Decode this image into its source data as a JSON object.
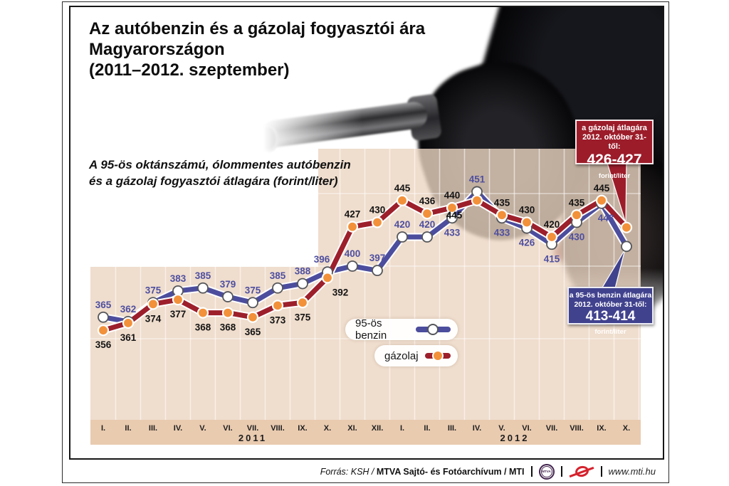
{
  "header": {
    "title_lines": [
      "Az autóbenzin és a gázolaj fogyasztói ára",
      "Magyarországon",
      "(2011–2012. szeptember)"
    ],
    "subtitle_lines": [
      "A 95-ös oktánszámú, ólommentes autóbenzin",
      "és a gázolaj fogyasztói átlagára (forint/liter)"
    ]
  },
  "chart_data": {
    "type": "line",
    "title": "Az autóbenzin és a gázolaj fogyasztói ára Magyarországon (2011–2012. szeptember)",
    "ylabel": "forint/liter",
    "ylim": [
      340,
      465
    ],
    "grid": true,
    "x_groups": [
      {
        "year": "2011",
        "months": [
          "I.",
          "II.",
          "III.",
          "IV.",
          "V.",
          "VI.",
          "VII.",
          "VIII.",
          "IX.",
          "X.",
          "XI.",
          "XII."
        ]
      },
      {
        "year": "2012",
        "months": [
          "I.",
          "II.",
          "III.",
          "IV.",
          "V.",
          "VI.",
          "VII.",
          "VIII.",
          "IX.",
          "X."
        ]
      }
    ],
    "series": [
      {
        "name": "95-ös benzin",
        "line_color": "#4c4d9d",
        "dot_fill": "#ffffff",
        "dot_stroke": "#55565a",
        "label_color": "#4e4fa0",
        "values": [
          365,
          362,
          375,
          383,
          385,
          379,
          375,
          385,
          388,
          396,
          400,
          397,
          420,
          420,
          433,
          451,
          433,
          426,
          415,
          430,
          443,
          413.5
        ],
        "labels": [
          "365",
          "362",
          "375",
          "383",
          "385",
          "379",
          "375",
          "385",
          "388",
          "396",
          "400",
          "397",
          "420",
          "420",
          "433",
          "451",
          "433",
          "426",
          "415",
          "430",
          "443",
          ""
        ],
        "label_side": [
          "above",
          "above",
          "above",
          "above",
          "above",
          "above",
          "above",
          "above",
          "above",
          "above",
          "above",
          "above",
          "above",
          "above",
          "below",
          "above",
          "below",
          "below",
          "below",
          "below",
          "below",
          "none"
        ],
        "label_dx": [
          0,
          0,
          0,
          0,
          0,
          0,
          0,
          0,
          0,
          -8,
          0,
          0,
          0,
          0,
          0,
          0,
          0,
          0,
          0,
          0,
          6,
          0
        ]
      },
      {
        "name": "gázolaj",
        "line_color": "#9c1f2b",
        "dot_fill": "#f2913a",
        "dot_stroke": "#ffffff",
        "label_color": "#141414",
        "values": [
          356,
          361,
          374,
          377,
          368,
          368,
          365,
          373,
          375,
          392,
          427,
          430,
          445,
          436,
          440,
          445,
          435,
          430,
          420,
          435,
          445,
          426.5
        ],
        "labels": [
          "356",
          "361",
          "374",
          "377",
          "368",
          "368",
          "365",
          "373",
          "375",
          "392",
          "427",
          "430",
          "445",
          "436",
          "440",
          "445",
          "435",
          "430",
          "420",
          "435",
          "445",
          ""
        ],
        "label_side": [
          "below",
          "below",
          "below",
          "below",
          "below",
          "below",
          "below",
          "below",
          "below",
          "below",
          "above",
          "above",
          "above",
          "above",
          "above",
          "below",
          "above",
          "above",
          "above",
          "above",
          "above",
          "none"
        ],
        "label_dx": [
          0,
          0,
          0,
          0,
          0,
          0,
          0,
          0,
          0,
          18,
          0,
          0,
          0,
          0,
          0,
          -32,
          0,
          0,
          0,
          0,
          0,
          0
        ]
      }
    ],
    "legend_position": "center"
  },
  "callouts": {
    "gazolaj": {
      "line1": "a gázolaj átlagára",
      "line2": "2012. október 31-től:",
      "value": "426-427",
      "unit": "forint/liter",
      "color": "#9c1c2a"
    },
    "benzin": {
      "line1": "a 95-ös benzin átlagára",
      "line2": "2012. október 31-től:",
      "value": "413-414",
      "unit": "forint/liter",
      "color": "#41428e"
    }
  },
  "footer": {
    "source_italic": "Forrás: KSH / ",
    "source_bold": "MTVA Sajtó- és Fotóarchívum / MTI",
    "mtva_label": "MTVA",
    "url": "www.mti.hu"
  }
}
